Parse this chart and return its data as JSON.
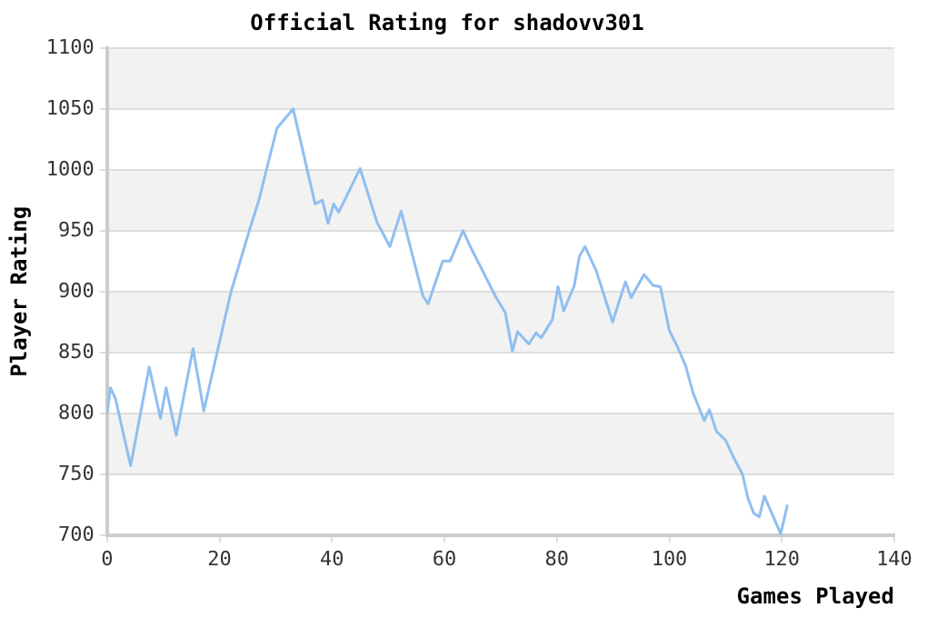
{
  "chart_data": {
    "type": "line",
    "title": "Official Rating for shadovv301",
    "xlabel": "Games Played",
    "ylabel": "Player Rating",
    "x": [
      0,
      0.6,
      1.5,
      4.2,
      7.5,
      9.5,
      10.5,
      12.3,
      15.3,
      17.2,
      22,
      25.3,
      27,
      30.2,
      33.1,
      37,
      38.3,
      39.3,
      40.3,
      41.2,
      45,
      48,
      50.3,
      52.3,
      56.2,
      57.1,
      59.7,
      61,
      63.3,
      64.6,
      69.2,
      70.8,
      72.1,
      73,
      75,
      76.3,
      77.2,
      79.2,
      80.2,
      81.2,
      83.1,
      84,
      85,
      87,
      89.9,
      92.2,
      93.2,
      95.5,
      97.1,
      98.4,
      100,
      101.6,
      102.9,
      104.2,
      106.2,
      107.1,
      108.4,
      110,
      111.4,
      113,
      114,
      115,
      116,
      116.9,
      119.8,
      121
    ],
    "series": [
      {
        "color": "#8fbff0",
        "values": [
          800,
          821,
          812,
          757,
          838,
          796,
          821,
          782,
          853,
          802,
          899,
          950,
          975,
          1034,
          1050,
          972,
          975,
          956,
          972,
          965,
          1001,
          957,
          937,
          966,
          896,
          890,
          925,
          925,
          950,
          937,
          895,
          883,
          851,
          867,
          857,
          866,
          862,
          877,
          904,
          884,
          905,
          929,
          937,
          917,
          875,
          908,
          895,
          914,
          905,
          904,
          868,
          853,
          839,
          817,
          794,
          803,
          785,
          778,
          764,
          750,
          730,
          718,
          715,
          732,
          701,
          725
        ]
      }
    ],
    "xlim": [
      0,
      140
    ],
    "xticks": [
      0,
      20,
      40,
      60,
      80,
      100,
      120,
      140
    ],
    "ylim": [
      700,
      1100
    ],
    "yticks": [
      700,
      750,
      800,
      850,
      900,
      950,
      1000,
      1050,
      1100
    ],
    "grid": "y",
    "legend": false,
    "marker": "none",
    "line_style": "solid"
  }
}
